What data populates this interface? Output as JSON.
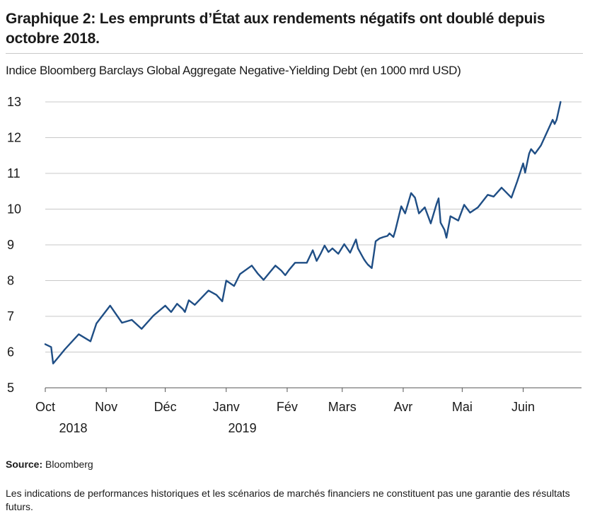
{
  "title": "Graphique 2: Les emprunts d’État aux rendements négatifs ont doublé depuis octobre 2018.",
  "subtitle": "Indice Bloomberg Barclays Global Aggregate Negative-Yielding Debt (en 1000 mrd USD)",
  "source_label": "Source:",
  "source_value": "Bloomberg",
  "disclaimer": "Les indications de performances historiques et les scénarios de marchés financiers ne constituent pas une garantie des résultats futurs.",
  "colors": {
    "line": "#1f4e85",
    "grid": "#c8c8c8",
    "axis": "#555555"
  },
  "chart_data": {
    "type": "line",
    "title": "Graphique 2: Les emprunts d’État aux rendements négatifs ont doublé depuis octobre 2018.",
    "ylabel": "Indice Bloomberg Barclays Global Aggregate Negative-Yielding Debt (en 1000 mrd USD)",
    "ylim": [
      5,
      13
    ],
    "yticks": [
      5,
      6,
      7,
      8,
      9,
      10,
      11,
      12,
      13
    ],
    "grid": true,
    "x_axis": "dates",
    "xlim": [
      "2018-10-01",
      "2019-06-26"
    ],
    "month_ticks": [
      {
        "date": "2018-10-01",
        "label": "Oct"
      },
      {
        "date": "2018-11-01",
        "label": "Nov"
      },
      {
        "date": "2018-12-01",
        "label": "Déc"
      },
      {
        "date": "2019-01-01",
        "label": "Janv"
      },
      {
        "date": "2019-02-01",
        "label": "Fév"
      },
      {
        "date": "2019-03-01",
        "label": "Mars"
      },
      {
        "date": "2019-04-01",
        "label": "Avr"
      },
      {
        "date": "2019-05-01",
        "label": "Mai"
      },
      {
        "date": "2019-06-01",
        "label": "Juin"
      }
    ],
    "year_labels": [
      {
        "date": "2018-10-08",
        "label": "2018"
      },
      {
        "date": "2019-01-02",
        "label": "2019"
      }
    ],
    "series": [
      {
        "x": [
          "2018-10-01",
          "2018-10-04",
          "2018-10-05",
          "2018-10-08",
          "2018-10-11",
          "2018-10-18",
          "2018-10-24",
          "2018-10-27",
          "2018-11-03",
          "2018-11-09",
          "2018-11-14",
          "2018-11-19",
          "2018-11-25",
          "2018-12-01",
          "2018-12-04",
          "2018-12-07",
          "2018-12-10",
          "2018-12-11",
          "2018-12-13",
          "2018-12-16",
          "2018-12-23",
          "2018-12-27",
          "2018-12-30",
          "2019-01-01",
          "2019-01-05",
          "2019-01-08",
          "2019-01-11",
          "2019-01-14",
          "2019-01-17",
          "2019-01-20",
          "2019-01-23",
          "2019-01-26",
          "2019-01-29",
          "2019-01-31",
          "2019-02-02",
          "2019-02-05",
          "2019-02-08",
          "2019-02-11",
          "2019-02-14",
          "2019-02-16",
          "2019-02-18",
          "2019-02-20",
          "2019-02-22",
          "2019-02-24",
          "2019-02-26",
          "2019-02-27",
          "2019-03-02",
          "2019-03-05",
          "2019-03-08",
          "2019-03-09",
          "2019-03-10",
          "2019-03-11",
          "2019-03-12",
          "2019-03-13",
          "2019-03-14",
          "2019-03-16",
          "2019-03-17",
          "2019-03-18",
          "2019-03-20",
          "2019-03-22",
          "2019-03-24",
          "2019-03-25",
          "2019-03-27",
          "2019-03-28",
          "2019-03-31",
          "2019-04-02",
          "2019-04-05",
          "2019-04-07",
          "2019-04-09",
          "2019-04-12",
          "2019-04-15",
          "2019-04-18",
          "2019-04-19",
          "2019-04-20",
          "2019-04-22",
          "2019-04-23",
          "2019-04-25",
          "2019-04-29",
          "2019-05-02",
          "2019-05-05",
          "2019-05-09",
          "2019-05-14",
          "2019-05-17",
          "2019-05-21",
          "2019-05-26",
          "2019-05-29",
          "2019-06-01",
          "2019-06-02",
          "2019-06-04",
          "2019-06-05",
          "2019-06-07",
          "2019-06-10",
          "2019-06-16",
          "2019-06-17",
          "2019-06-18",
          "2019-06-20"
        ],
        "y": [
          6.22,
          6.14,
          5.68,
          5.88,
          6.08,
          6.5,
          6.3,
          6.8,
          7.3,
          6.82,
          6.9,
          6.65,
          7.02,
          7.3,
          7.12,
          7.35,
          7.2,
          7.12,
          7.45,
          7.32,
          7.72,
          7.6,
          7.42,
          8.0,
          7.85,
          8.18,
          8.3,
          8.42,
          8.2,
          8.02,
          8.22,
          8.42,
          8.28,
          8.15,
          8.3,
          8.5,
          8.5,
          8.5,
          8.85,
          8.55,
          8.75,
          8.98,
          8.8,
          8.9,
          8.8,
          8.75,
          9.02,
          8.78,
          9.15,
          8.9,
          8.8,
          8.7,
          8.6,
          8.52,
          8.45,
          8.35,
          8.72,
          9.1,
          9.18,
          9.22,
          9.25,
          9.32,
          9.22,
          9.4,
          10.08,
          9.88,
          10.45,
          10.32,
          9.88,
          10.05,
          9.6,
          10.15,
          10.3,
          9.62,
          9.42,
          9.2,
          9.8,
          9.68,
          10.12,
          9.9,
          10.05,
          10.4,
          10.35,
          10.6,
          10.32,
          10.78,
          11.28,
          11.02,
          11.55,
          11.68,
          11.55,
          11.78,
          12.5,
          12.38,
          12.5,
          13.0
        ]
      }
    ]
  }
}
